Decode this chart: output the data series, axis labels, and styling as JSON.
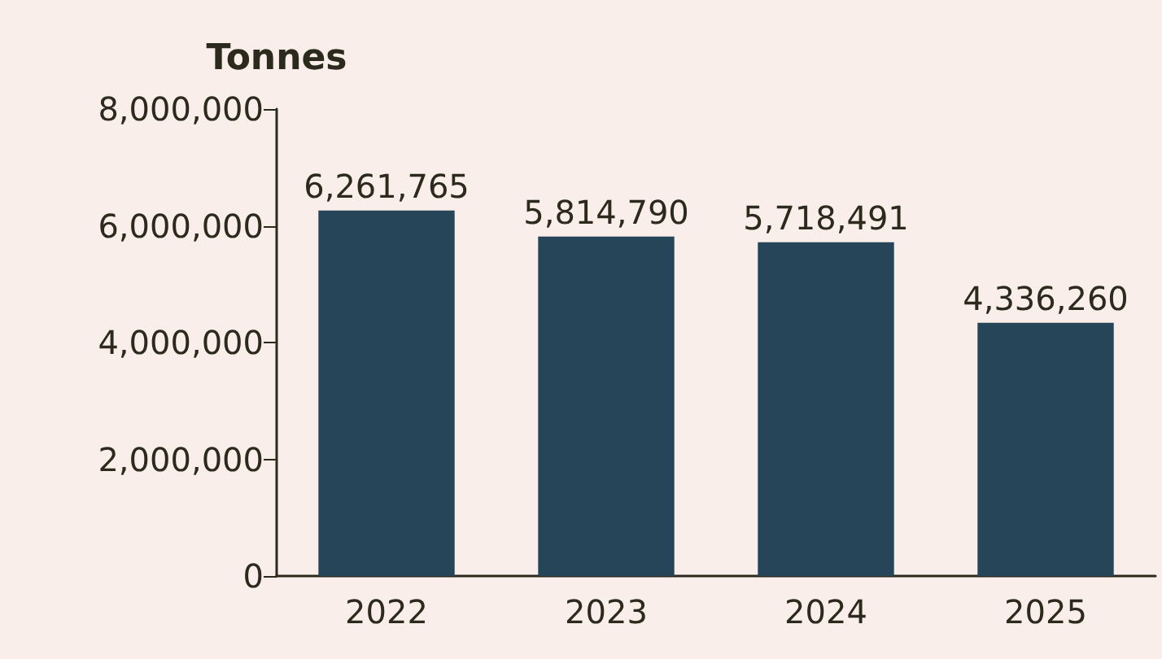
{
  "chart_data": {
    "type": "bar",
    "ylabel": "Tonnes",
    "categories": [
      "2022",
      "2023",
      "2024",
      "2025"
    ],
    "values": [
      6261765,
      5814790,
      5718491,
      4336260
    ],
    "value_labels": [
      "6,261,765",
      "5,814,790",
      "5,718,491",
      "4,336,260"
    ],
    "color": "#264559",
    "ylim": [
      0,
      8000000
    ],
    "yticks": [
      0,
      {
        "value": 2000000,
        "label": "2,000,000"
      },
      {
        "value": 4000000,
        "label": "4,000,000"
      },
      {
        "value": 6000000,
        "label": "6,000,000"
      },
      {
        "value": 8000000,
        "label": "8,000,000"
      }
    ],
    "grid": false
  }
}
